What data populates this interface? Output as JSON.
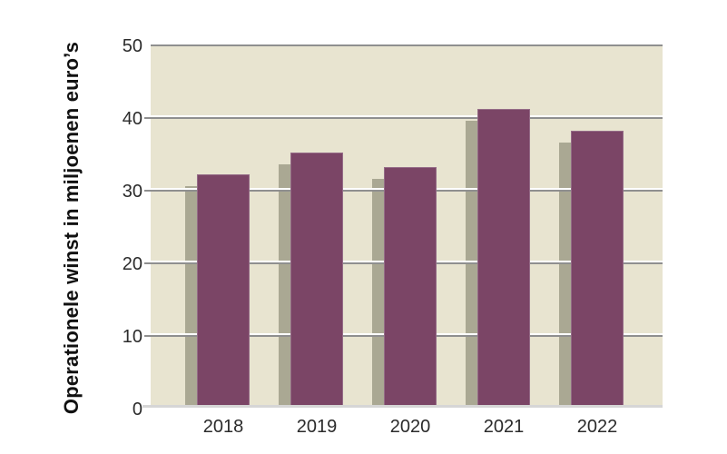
{
  "chart_data": {
    "type": "bar",
    "title": "",
    "ylabel": "Operationele winst in miljoenen euro’s",
    "xlabel": "",
    "categories": [
      "2018",
      "2019",
      "2020",
      "2021",
      "2022"
    ],
    "values": [
      32,
      35,
      33,
      41,
      38
    ],
    "ylim": [
      0,
      50
    ],
    "yticks": [
      0,
      10,
      20,
      30,
      40,
      50
    ],
    "grid": true,
    "legend": false,
    "bar_style": "solid with offset drop shadow (down-left)",
    "colors": {
      "bar": "#7b4566",
      "bar_border": "#956c87",
      "bar_shadow": "#aaa893",
      "plot_background": "#e8e4d0",
      "gridline_top": "#ffffff",
      "gridline_bottom": "#8f8f8f",
      "baseline": "#d6d6d6",
      "tick_label": "#2b2b2b",
      "axis_title": "#111111",
      "canvas_background": "#ffffff"
    }
  }
}
